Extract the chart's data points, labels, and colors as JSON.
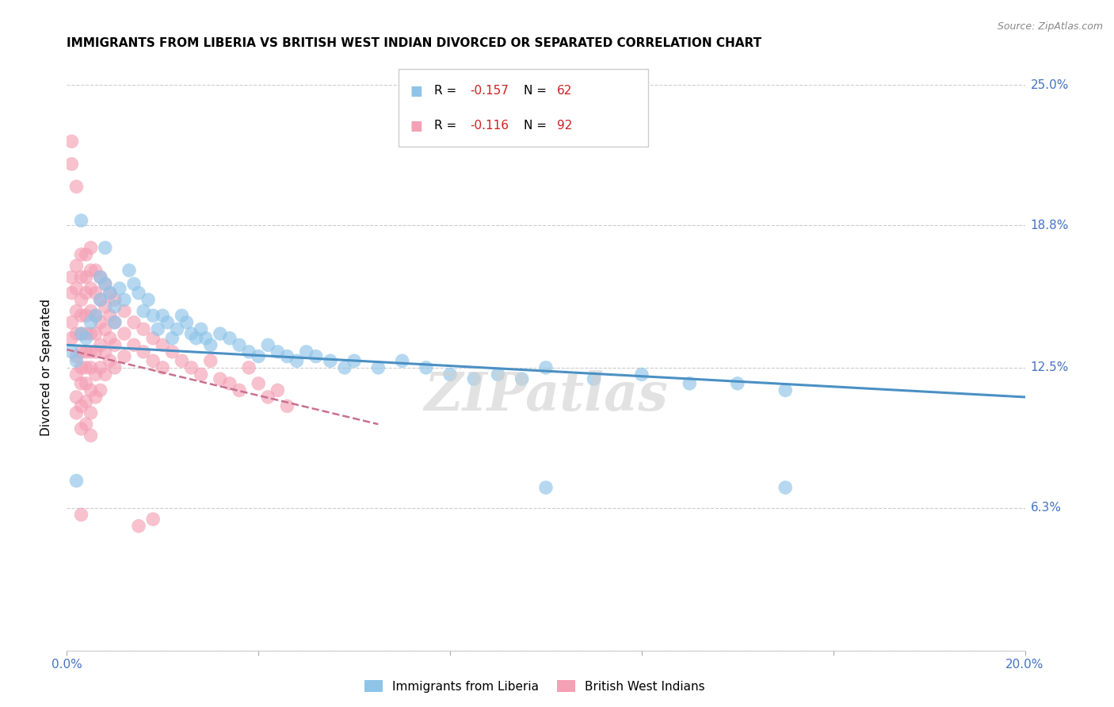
{
  "title": "IMMIGRANTS FROM LIBERIA VS BRITISH WEST INDIAN DIVORCED OR SEPARATED CORRELATION CHART",
  "source": "Source: ZipAtlas.com",
  "ylabel": "Divorced or Separated",
  "xlim": [
    0.0,
    0.2
  ],
  "ylim": [
    0.0,
    0.25
  ],
  "ytick_labels_right": [
    "25.0%",
    "18.8%",
    "12.5%",
    "6.3%"
  ],
  "ytick_vals_right": [
    0.25,
    0.188,
    0.125,
    0.063
  ],
  "color_blue": "#8ec4e8",
  "color_pink": "#f4a0b5",
  "color_blue_line": "#4a90c4",
  "color_pink_line": "#c87090",
  "watermark": "ZIPatlas",
  "trendline_blue": {
    "x_start": 0.0,
    "x_end": 0.2,
    "y_start": 0.135,
    "y_end": 0.112
  },
  "trendline_pink": {
    "x_start": 0.0,
    "x_end": 0.065,
    "y_start": 0.133,
    "y_end": 0.1
  },
  "scatter_blue": [
    [
      0.001,
      0.132
    ],
    [
      0.002,
      0.128
    ],
    [
      0.003,
      0.14
    ],
    [
      0.004,
      0.138
    ],
    [
      0.005,
      0.145
    ],
    [
      0.006,
      0.148
    ],
    [
      0.007,
      0.155
    ],
    [
      0.007,
      0.165
    ],
    [
      0.008,
      0.162
    ],
    [
      0.009,
      0.158
    ],
    [
      0.01,
      0.152
    ],
    [
      0.01,
      0.145
    ],
    [
      0.011,
      0.16
    ],
    [
      0.012,
      0.155
    ],
    [
      0.013,
      0.168
    ],
    [
      0.014,
      0.162
    ],
    [
      0.015,
      0.158
    ],
    [
      0.016,
      0.15
    ],
    [
      0.017,
      0.155
    ],
    [
      0.018,
      0.148
    ],
    [
      0.019,
      0.142
    ],
    [
      0.02,
      0.148
    ],
    [
      0.021,
      0.145
    ],
    [
      0.022,
      0.138
    ],
    [
      0.023,
      0.142
    ],
    [
      0.024,
      0.148
    ],
    [
      0.025,
      0.145
    ],
    [
      0.026,
      0.14
    ],
    [
      0.027,
      0.138
    ],
    [
      0.028,
      0.142
    ],
    [
      0.029,
      0.138
    ],
    [
      0.03,
      0.135
    ],
    [
      0.032,
      0.14
    ],
    [
      0.034,
      0.138
    ],
    [
      0.036,
      0.135
    ],
    [
      0.038,
      0.132
    ],
    [
      0.04,
      0.13
    ],
    [
      0.042,
      0.135
    ],
    [
      0.044,
      0.132
    ],
    [
      0.046,
      0.13
    ],
    [
      0.048,
      0.128
    ],
    [
      0.05,
      0.132
    ],
    [
      0.052,
      0.13
    ],
    [
      0.055,
      0.128
    ],
    [
      0.058,
      0.125
    ],
    [
      0.06,
      0.128
    ],
    [
      0.065,
      0.125
    ],
    [
      0.07,
      0.128
    ],
    [
      0.075,
      0.125
    ],
    [
      0.08,
      0.122
    ],
    [
      0.085,
      0.12
    ],
    [
      0.09,
      0.122
    ],
    [
      0.095,
      0.12
    ],
    [
      0.1,
      0.125
    ],
    [
      0.11,
      0.12
    ],
    [
      0.12,
      0.122
    ],
    [
      0.13,
      0.118
    ],
    [
      0.14,
      0.118
    ],
    [
      0.15,
      0.115
    ],
    [
      0.003,
      0.19
    ],
    [
      0.008,
      0.178
    ],
    [
      0.1,
      0.072
    ],
    [
      0.15,
      0.072
    ],
    [
      0.002,
      0.075
    ]
  ],
  "scatter_pink": [
    [
      0.001,
      0.158
    ],
    [
      0.001,
      0.165
    ],
    [
      0.001,
      0.145
    ],
    [
      0.001,
      0.138
    ],
    [
      0.002,
      0.17
    ],
    [
      0.002,
      0.16
    ],
    [
      0.002,
      0.15
    ],
    [
      0.002,
      0.14
    ],
    [
      0.002,
      0.13
    ],
    [
      0.002,
      0.122
    ],
    [
      0.002,
      0.112
    ],
    [
      0.002,
      0.105
    ],
    [
      0.003,
      0.175
    ],
    [
      0.003,
      0.165
    ],
    [
      0.003,
      0.155
    ],
    [
      0.003,
      0.148
    ],
    [
      0.003,
      0.14
    ],
    [
      0.003,
      0.132
    ],
    [
      0.003,
      0.125
    ],
    [
      0.003,
      0.118
    ],
    [
      0.003,
      0.108
    ],
    [
      0.003,
      0.098
    ],
    [
      0.004,
      0.175
    ],
    [
      0.004,
      0.165
    ],
    [
      0.004,
      0.158
    ],
    [
      0.004,
      0.148
    ],
    [
      0.004,
      0.14
    ],
    [
      0.004,
      0.132
    ],
    [
      0.004,
      0.125
    ],
    [
      0.004,
      0.118
    ],
    [
      0.004,
      0.11
    ],
    [
      0.004,
      0.1
    ],
    [
      0.005,
      0.178
    ],
    [
      0.005,
      0.168
    ],
    [
      0.005,
      0.16
    ],
    [
      0.005,
      0.15
    ],
    [
      0.005,
      0.14
    ],
    [
      0.005,
      0.132
    ],
    [
      0.005,
      0.125
    ],
    [
      0.005,
      0.115
    ],
    [
      0.005,
      0.105
    ],
    [
      0.005,
      0.095
    ],
    [
      0.006,
      0.168
    ],
    [
      0.006,
      0.158
    ],
    [
      0.006,
      0.148
    ],
    [
      0.006,
      0.14
    ],
    [
      0.006,
      0.132
    ],
    [
      0.006,
      0.122
    ],
    [
      0.006,
      0.112
    ],
    [
      0.007,
      0.165
    ],
    [
      0.007,
      0.155
    ],
    [
      0.007,
      0.145
    ],
    [
      0.007,
      0.135
    ],
    [
      0.007,
      0.125
    ],
    [
      0.007,
      0.115
    ],
    [
      0.008,
      0.162
    ],
    [
      0.008,
      0.152
    ],
    [
      0.008,
      0.142
    ],
    [
      0.008,
      0.132
    ],
    [
      0.008,
      0.122
    ],
    [
      0.009,
      0.158
    ],
    [
      0.009,
      0.148
    ],
    [
      0.009,
      0.138
    ],
    [
      0.009,
      0.128
    ],
    [
      0.01,
      0.155
    ],
    [
      0.01,
      0.145
    ],
    [
      0.01,
      0.135
    ],
    [
      0.01,
      0.125
    ],
    [
      0.012,
      0.15
    ],
    [
      0.012,
      0.14
    ],
    [
      0.012,
      0.13
    ],
    [
      0.014,
      0.145
    ],
    [
      0.014,
      0.135
    ],
    [
      0.016,
      0.142
    ],
    [
      0.016,
      0.132
    ],
    [
      0.018,
      0.138
    ],
    [
      0.018,
      0.128
    ],
    [
      0.02,
      0.135
    ],
    [
      0.02,
      0.125
    ],
    [
      0.022,
      0.132
    ],
    [
      0.024,
      0.128
    ],
    [
      0.026,
      0.125
    ],
    [
      0.028,
      0.122
    ],
    [
      0.03,
      0.128
    ],
    [
      0.032,
      0.12
    ],
    [
      0.034,
      0.118
    ],
    [
      0.036,
      0.115
    ],
    [
      0.038,
      0.125
    ],
    [
      0.04,
      0.118
    ],
    [
      0.042,
      0.112
    ],
    [
      0.044,
      0.115
    ],
    [
      0.046,
      0.108
    ],
    [
      0.001,
      0.215
    ],
    [
      0.002,
      0.205
    ],
    [
      0.001,
      0.225
    ],
    [
      0.003,
      0.06
    ],
    [
      0.015,
      0.055
    ],
    [
      0.018,
      0.058
    ]
  ]
}
